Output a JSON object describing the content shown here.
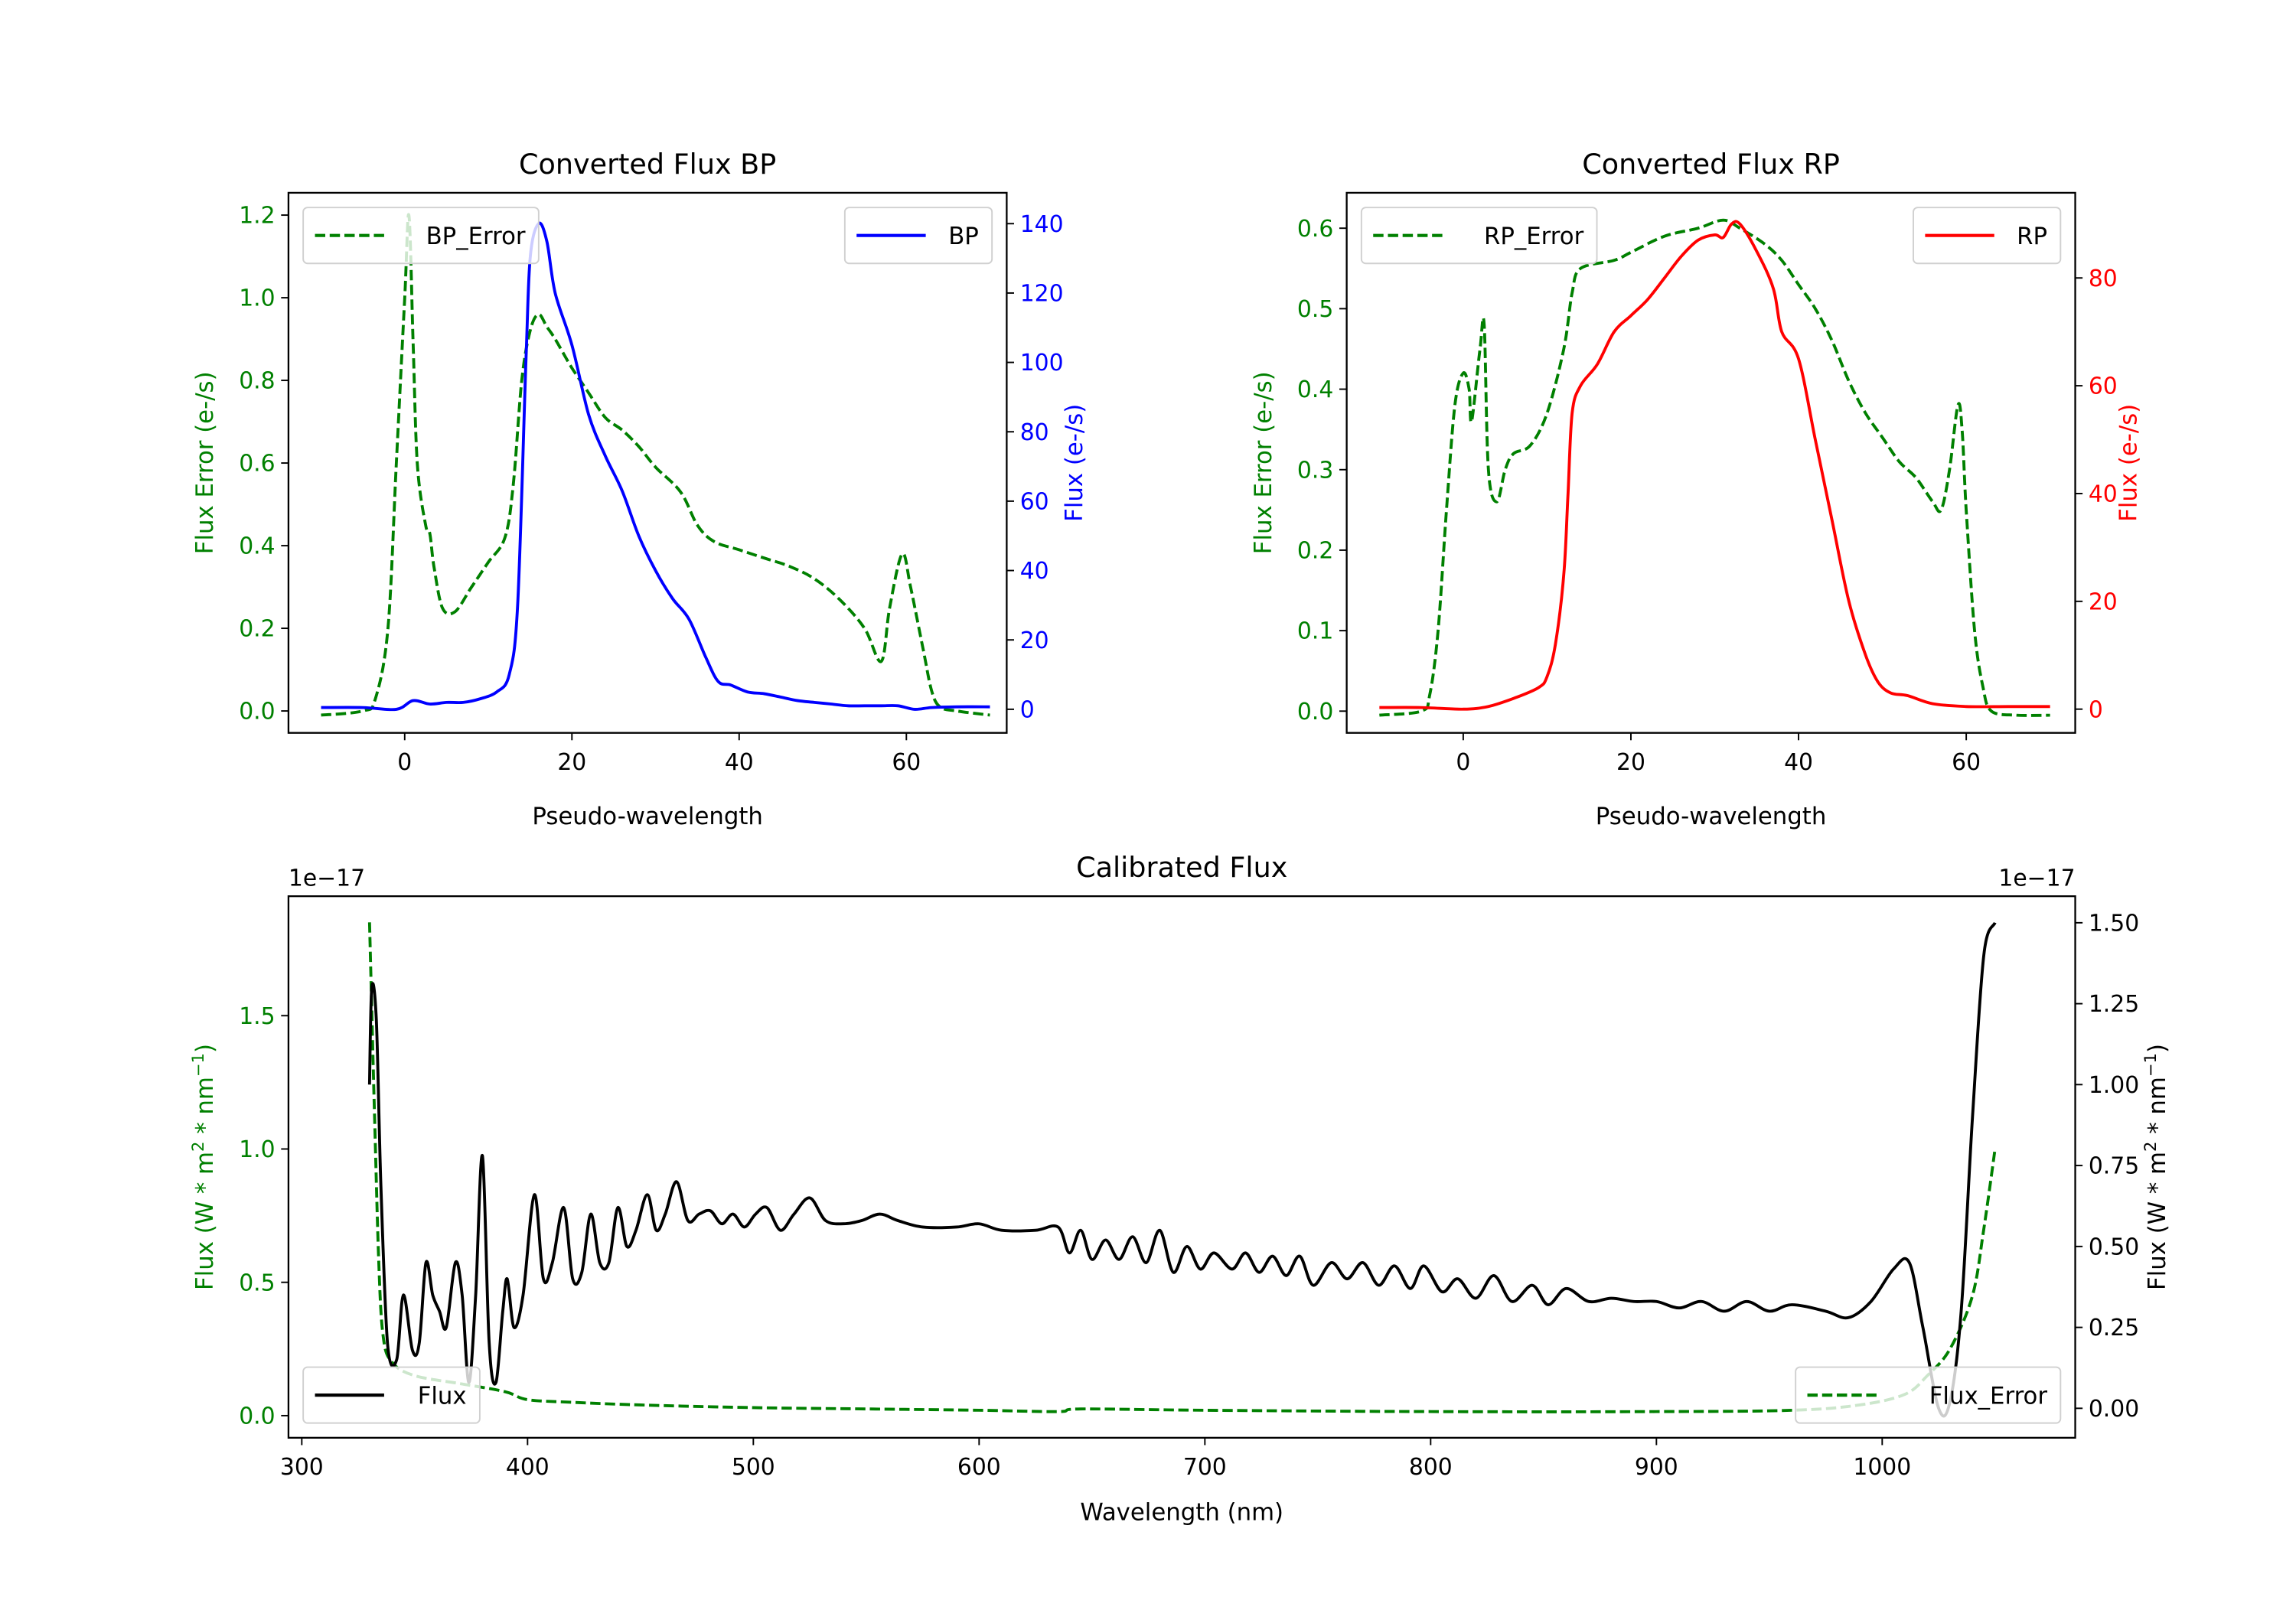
{
  "colors": {
    "green": "#008000",
    "blue": "#0000ff",
    "red": "#ff0000",
    "black": "#000000"
  },
  "chart_data": [
    {
      "type": "line",
      "title": "Converted Flux BP",
      "xlabel": "Pseudo-wavelength",
      "xlim": [
        -13.9,
        72
      ],
      "xticks": [
        0,
        20,
        40,
        60
      ],
      "left_axis": {
        "label": "Flux Error (e-/s)",
        "color": "#008000",
        "ylim": [
          -0.053,
          1.254
        ],
        "ticks": [
          "0.0",
          "0.2",
          "0.4",
          "0.6",
          "0.8",
          "1.0",
          "1.2"
        ]
      },
      "right_axis": {
        "label": "Flux (e-/s)",
        "color": "#0000ff",
        "ylim": [
          -6.8,
          148.9
        ],
        "ticks": [
          "0",
          "20",
          "40",
          "60",
          "80",
          "100",
          "120",
          "140"
        ]
      },
      "series": [
        {
          "name": "BP_Error",
          "axis": "left",
          "color": "#008000",
          "dash": true,
          "legend": "top-left",
          "x": [
            -10,
            -5,
            -3.5,
            -2,
            -1,
            0,
            0.5,
            1,
            1.5,
            2.5,
            3,
            3.5,
            4.5,
            6,
            8,
            10,
            12,
            13,
            14,
            15,
            16,
            17,
            18,
            20,
            22,
            24,
            26,
            28,
            30,
            33,
            35,
            37,
            40,
            43,
            46,
            49,
            52,
            55,
            57,
            58,
            59.5,
            60.5,
            62,
            63,
            64,
            66,
            70
          ],
          "y": [
            -0.01,
            0,
            0.03,
            0.2,
            0.6,
            1.0,
            1.2,
            0.9,
            0.6,
            0.45,
            0.43,
            0.35,
            0.25,
            0.24,
            0.3,
            0.36,
            0.42,
            0.55,
            0.8,
            0.92,
            0.96,
            0.93,
            0.9,
            0.83,
            0.77,
            0.71,
            0.68,
            0.64,
            0.59,
            0.53,
            0.45,
            0.41,
            0.39,
            0.37,
            0.35,
            0.32,
            0.27,
            0.2,
            0.12,
            0.25,
            0.38,
            0.3,
            0.15,
            0.05,
            0.01,
            0,
            -0.01
          ]
        },
        {
          "name": "BP",
          "axis": "right",
          "color": "#0000ff",
          "dash": false,
          "legend": "top-right",
          "x": [
            -10,
            -5,
            -1,
            1,
            3,
            5,
            7,
            9,
            11,
            12.5,
            13.5,
            14.5,
            15,
            16,
            17,
            18,
            20,
            22,
            24,
            26,
            28,
            30,
            32,
            34,
            36,
            37.5,
            39,
            41,
            43,
            45,
            47,
            49,
            51,
            53,
            55,
            57,
            59,
            61,
            63,
            66,
            70
          ],
          "y": [
            0.5,
            0.5,
            0,
            2.5,
            1.5,
            2,
            2,
            3,
            5,
            10,
            30,
            100,
            130,
            140,
            135,
            120,
            105,
            85,
            73,
            63,
            50,
            40,
            32,
            26,
            15,
            8,
            7,
            5,
            4.5,
            3.5,
            2.5,
            2,
            1.5,
            1,
            1,
            1,
            1,
            0,
            0.5,
            0.7,
            0.7
          ]
        }
      ]
    },
    {
      "type": "line",
      "title": "Converted Flux RP",
      "xlabel": "Pseudo-wavelength",
      "xlim": [
        -13.9,
        73
      ],
      "xticks": [
        0,
        20,
        40,
        60
      ],
      "left_axis": {
        "label": "Flux Error (e-/s)",
        "color": "#008000",
        "ylim": [
          -0.027,
          0.644
        ],
        "ticks": [
          "0.0",
          "0.1",
          "0.2",
          "0.3",
          "0.4",
          "0.5",
          "0.6"
        ]
      },
      "right_axis": {
        "label": "Flux (e-/s)",
        "color": "#ff0000",
        "ylim": [
          -4.4,
          95.8
        ],
        "ticks": [
          "0",
          "20",
          "40",
          "60",
          "80"
        ]
      },
      "series": [
        {
          "name": "RP_Error",
          "axis": "left",
          "color": "#008000",
          "dash": true,
          "legend": "top-left",
          "x": [
            -10,
            -5,
            -4,
            -3,
            -2,
            -1,
            0,
            0.7,
            1,
            2,
            2.5,
            3,
            4,
            5,
            6,
            8,
            10,
            12,
            13,
            14,
            18,
            20,
            24,
            28,
            31,
            33,
            36,
            38,
            40,
            42,
            44,
            46,
            48,
            50,
            52,
            54,
            56,
            57,
            58,
            59,
            59.5,
            60,
            61,
            62,
            63,
            66,
            70
          ],
          "y": [
            -0.005,
            0,
            0.02,
            0.1,
            0.25,
            0.38,
            0.42,
            0.4,
            0.36,
            0.45,
            0.48,
            0.3,
            0.26,
            0.3,
            0.32,
            0.33,
            0.37,
            0.45,
            0.52,
            0.55,
            0.56,
            0.57,
            0.59,
            0.6,
            0.61,
            0.6,
            0.58,
            0.56,
            0.53,
            0.5,
            0.46,
            0.41,
            0.37,
            0.34,
            0.31,
            0.29,
            0.26,
            0.25,
            0.3,
            0.38,
            0.35,
            0.25,
            0.1,
            0.03,
            0,
            -0.005,
            -0.005
          ]
        },
        {
          "name": "RP",
          "axis": "right",
          "color": "#ff0000",
          "dash": false,
          "legend": "top-right",
          "x": [
            -10,
            -5,
            0,
            3,
            6,
            9,
            10,
            11,
            12,
            12.5,
            13,
            14,
            16,
            18,
            20,
            22,
            24,
            26,
            28,
            30,
            31,
            32,
            33,
            35,
            37,
            38,
            40,
            42,
            44,
            46,
            48,
            49.5,
            51,
            53,
            56,
            60,
            65,
            70
          ],
          "y": [
            0.3,
            0.3,
            0,
            0.5,
            2,
            4,
            6,
            12,
            25,
            40,
            55,
            60,
            64,
            70,
            73,
            76,
            80,
            84,
            87,
            88,
            87.5,
            90,
            90,
            85,
            78,
            70,
            65,
            50,
            35,
            20,
            10,
            5,
            3,
            2.5,
            1,
            0.5,
            0.5,
            0.5
          ]
        }
      ]
    },
    {
      "type": "line",
      "title": "Calibrated Flux",
      "xlabel": "Wavelength (nm)",
      "xlim": [
        294.1,
        1085.5
      ],
      "xticks": [
        300,
        400,
        500,
        600,
        700,
        800,
        900,
        1000
      ],
      "left_axis": {
        "label_parts": [
          "Flux (W * m",
          "2",
          " * nm",
          "−1",
          ")"
        ],
        "offset": "1e−17",
        "color": "#008000",
        "ylim": [
          -0.083,
          1.948
        ],
        "ticks": [
          "0.0",
          "0.5",
          "1.0",
          "1.5"
        ]
      },
      "right_axis": {
        "label_parts": [
          "Flux (W * m",
          "2",
          " * nm",
          "−1",
          ")"
        ],
        "offset": "1e−17",
        "color": "#000000",
        "ylim": [
          -0.091,
          1.582
        ],
        "ticks": [
          "0.00",
          "0.25",
          "0.50",
          "0.75",
          "1.00",
          "1.25",
          "1.50"
        ]
      },
      "series": [
        {
          "name": "Flux_Error",
          "axis": "left",
          "color": "#008000",
          "dash": true,
          "legend": "bottom-right",
          "x": [
            330,
            332,
            334,
            336,
            340,
            350,
            370,
            390,
            400,
            420,
            450,
            500,
            550,
            600,
            635,
            645,
            700,
            800,
            900,
            960,
            990,
            1010,
            1020,
            1030,
            1040,
            1045,
            1050
          ],
          "y": [
            1.85,
            1.2,
            0.6,
            0.3,
            0.2,
            0.15,
            0.12,
            0.09,
            0.06,
            0.05,
            0.04,
            0.03,
            0.025,
            0.02,
            0.015,
            0.025,
            0.02,
            0.015,
            0.015,
            0.02,
            0.04,
            0.08,
            0.15,
            0.25,
            0.45,
            0.7,
            1.0
          ]
        },
        {
          "name": "Flux",
          "axis": "right",
          "color": "#000000",
          "dash": false,
          "legend": "bottom-left",
          "x": [
            330,
            331,
            333,
            335,
            338,
            342,
            345,
            349,
            352,
            355,
            358,
            361,
            364,
            368,
            371,
            374,
            377,
            380,
            383,
            386,
            389,
            391,
            394,
            398,
            403,
            407,
            411,
            416,
            420,
            424,
            428,
            432,
            436,
            440,
            444,
            448,
            453,
            457,
            461,
            466,
            471,
            476,
            481,
            486,
            491,
            496,
            501,
            506,
            512,
            518,
            525,
            532,
            540,
            548,
            556,
            564,
            575,
            590,
            600,
            610,
            625,
            635,
            640,
            645,
            650,
            656,
            662,
            668,
            674,
            680,
            686,
            692,
            698,
            704,
            712,
            718,
            724,
            730,
            736,
            742,
            748,
            756,
            763,
            770,
            777,
            784,
            791,
            797,
            805,
            812,
            820,
            828,
            836,
            845,
            852,
            860,
            870,
            880,
            890,
            900,
            910,
            920,
            930,
            940,
            950,
            960,
            975,
            985,
            995,
            1005,
            1012,
            1018,
            1025,
            1030,
            1035,
            1040,
            1045,
            1050
          ],
          "y": [
            1.0,
            1.3,
            1.2,
            0.7,
            0.2,
            0.15,
            0.35,
            0.18,
            0.2,
            0.45,
            0.35,
            0.3,
            0.25,
            0.45,
            0.35,
            0.08,
            0.35,
            0.78,
            0.2,
            0.08,
            0.3,
            0.4,
            0.25,
            0.35,
            0.66,
            0.4,
            0.45,
            0.62,
            0.4,
            0.42,
            0.6,
            0.45,
            0.45,
            0.62,
            0.5,
            0.55,
            0.66,
            0.55,
            0.6,
            0.7,
            0.58,
            0.6,
            0.61,
            0.57,
            0.6,
            0.56,
            0.6,
            0.62,
            0.55,
            0.6,
            0.65,
            0.58,
            0.57,
            0.58,
            0.6,
            0.58,
            0.56,
            0.56,
            0.57,
            0.55,
            0.55,
            0.56,
            0.48,
            0.55,
            0.46,
            0.52,
            0.46,
            0.53,
            0.45,
            0.55,
            0.42,
            0.5,
            0.43,
            0.48,
            0.43,
            0.48,
            0.42,
            0.47,
            0.41,
            0.47,
            0.38,
            0.45,
            0.4,
            0.45,
            0.38,
            0.44,
            0.37,
            0.44,
            0.36,
            0.4,
            0.34,
            0.41,
            0.33,
            0.38,
            0.32,
            0.37,
            0.33,
            0.34,
            0.33,
            0.33,
            0.31,
            0.33,
            0.3,
            0.33,
            0.3,
            0.32,
            0.3,
            0.28,
            0.33,
            0.43,
            0.45,
            0.25,
            0.0,
            0.02,
            0.3,
            0.9,
            1.4,
            1.5
          ]
        }
      ]
    }
  ]
}
